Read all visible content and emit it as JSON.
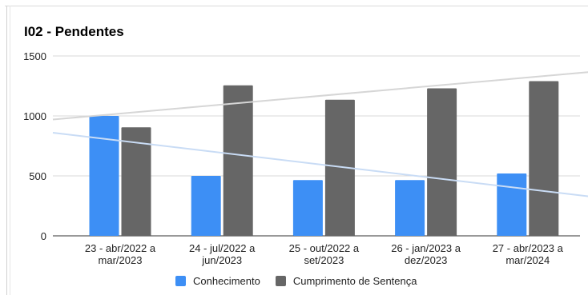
{
  "chart_data": {
    "type": "bar",
    "title": "I02 - Pendentes",
    "categories": [
      [
        "23 - abr/2022 a",
        "mar/2023"
      ],
      [
        "24 - jul/2022 a",
        "jun/2023"
      ],
      [
        "25 - out/2022 a",
        "set/2023"
      ],
      [
        "26 - jan/2023 a",
        "dez/2023"
      ],
      [
        "27 - abr/2023 a",
        "mar/2024"
      ]
    ],
    "series": [
      {
        "name": "Conhecimento",
        "color": "#3d8ff5",
        "values": [
          1000,
          500,
          465,
          465,
          520
        ]
      },
      {
        "name": "Cumprimento de Sentença",
        "color": "#666666",
        "values": [
          905,
          1255,
          1135,
          1230,
          1290
        ]
      }
    ],
    "trendlines": [
      {
        "series": "Conhecimento",
        "color": "#c9dcf5",
        "start": 860,
        "end": 330
      },
      {
        "series": "Cumprimento de Sentença",
        "color": "#d6d6d6",
        "start": 970,
        "end": 1365
      }
    ],
    "ylim": [
      0,
      1500
    ],
    "yticks": [
      0,
      500,
      1000,
      1500
    ],
    "grid": true,
    "legend": "bottom"
  }
}
